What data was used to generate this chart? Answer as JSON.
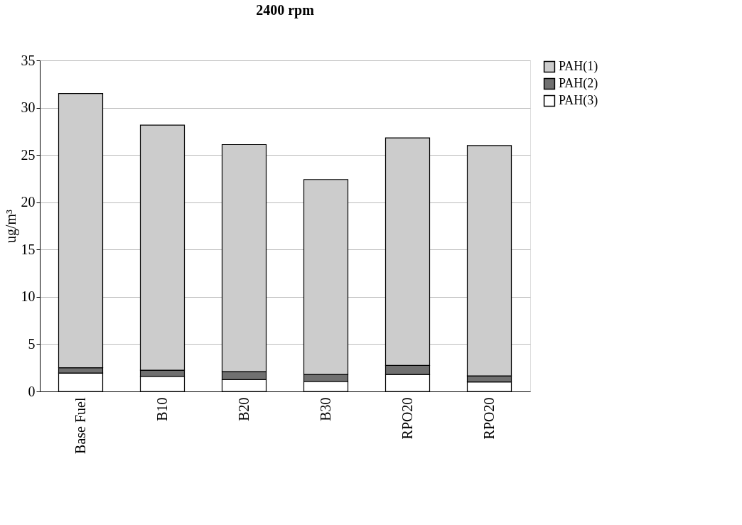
{
  "chart_data": {
    "type": "bar",
    "title": "2400 rpm",
    "ylabel": "ug/m³",
    "stacked": true,
    "categories": [
      "Base Fuel",
      "B10",
      "B20",
      "B30",
      "RPO20",
      "RPO20"
    ],
    "series": [
      {
        "name": "PAH(3)",
        "color": "#ffffff",
        "values": [
          1.95,
          1.6,
          1.25,
          1.05,
          1.8,
          1.0
        ]
      },
      {
        "name": "PAH(2)",
        "color": "#707070",
        "values": [
          0.55,
          0.65,
          0.85,
          0.75,
          0.95,
          0.65
        ]
      },
      {
        "name": "PAH(1)",
        "color": "#cccccc",
        "values": [
          29.0,
          25.9,
          24.0,
          20.6,
          24.05,
          24.35
        ]
      }
    ],
    "ylim": [
      0,
      35
    ],
    "yticks": [
      0,
      5,
      10,
      15,
      20,
      25,
      30,
      35
    ],
    "grid": "y",
    "legend": "right"
  }
}
